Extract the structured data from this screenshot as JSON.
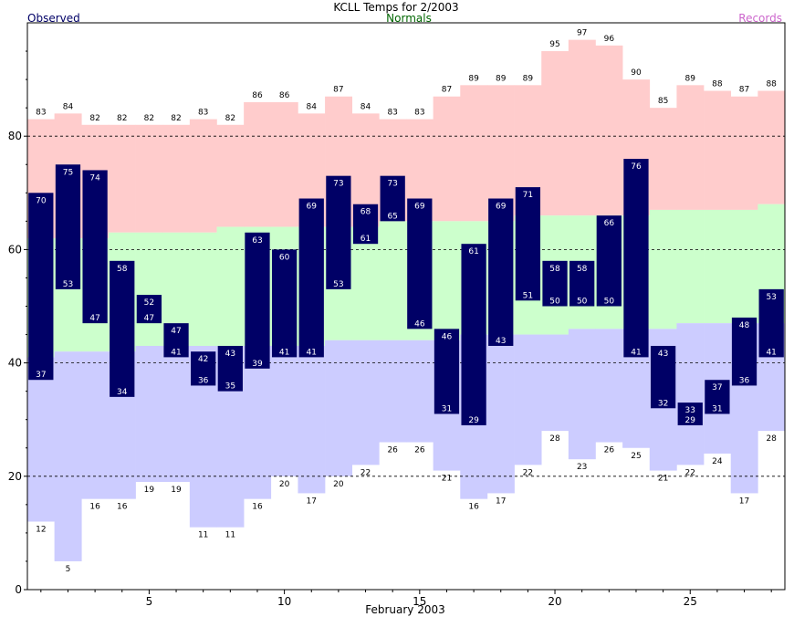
{
  "chart_data": {
    "type": "bar",
    "title": "KCLL Temps for 2/2003",
    "legend": {
      "observed": "Observed",
      "normals": "Normals",
      "records": "Records"
    },
    "xlabel": "February 2003",
    "ylabel": "",
    "xlim": [
      0.5,
      28.5
    ],
    "ylim": [
      0,
      100
    ],
    "yticks": [
      0,
      20,
      40,
      60,
      80
    ],
    "xticks": [
      5,
      10,
      15,
      20,
      25
    ],
    "grid_lines": [
      20,
      40,
      60,
      80
    ],
    "days": [
      1,
      2,
      3,
      4,
      5,
      6,
      7,
      8,
      9,
      10,
      11,
      12,
      13,
      14,
      15,
      16,
      17,
      18,
      19,
      20,
      21,
      22,
      23,
      24,
      25,
      26,
      27,
      28
    ],
    "observed_high": [
      70,
      75,
      74,
      58,
      52,
      47,
      42,
      43,
      63,
      60,
      69,
      73,
      68,
      73,
      69,
      46,
      61,
      69,
      71,
      58,
      58,
      66,
      76,
      43,
      33,
      37,
      48,
      53
    ],
    "observed_low": [
      37,
      53,
      47,
      34,
      47,
      41,
      36,
      35,
      39,
      41,
      41,
      53,
      61,
      65,
      46,
      31,
      29,
      43,
      51,
      50,
      50,
      50,
      41,
      32,
      29,
      31,
      36,
      41
    ],
    "record_high": [
      83,
      84,
      82,
      82,
      82,
      82,
      83,
      82,
      86,
      86,
      84,
      87,
      84,
      83,
      83,
      87,
      89,
      89,
      89,
      95,
      97,
      96,
      90,
      85,
      89,
      88,
      87,
      88
    ],
    "record_low": [
      12,
      5,
      16,
      16,
      19,
      19,
      11,
      11,
      16,
      20,
      17,
      20,
      22,
      26,
      26,
      21,
      16,
      17,
      22,
      28,
      23,
      26,
      25,
      21,
      22,
      24,
      17,
      28
    ],
    "normal_high": [
      62,
      62,
      62,
      63,
      63,
      63,
      63,
      64,
      64,
      64,
      64,
      64,
      64,
      65,
      65,
      65,
      65,
      65,
      66,
      66,
      66,
      66,
      66,
      67,
      67,
      67,
      67,
      68
    ],
    "normal_low": [
      41,
      42,
      42,
      42,
      43,
      43,
      43,
      43,
      43,
      43,
      43,
      44,
      44,
      44,
      44,
      44,
      45,
      45,
      45,
      45,
      46,
      46,
      46,
      46,
      47,
      47,
      47,
      47
    ],
    "colors": {
      "record_band": "#ffcccc",
      "normal_band": "#ccffcc",
      "low_band": "#ccccff",
      "observed_bar": "#000066",
      "observed_text": "#000066",
      "normals_text": "#006600",
      "records_text": "#cc66cc",
      "bar_label": "#ffffff",
      "record_label": "#000000"
    }
  }
}
